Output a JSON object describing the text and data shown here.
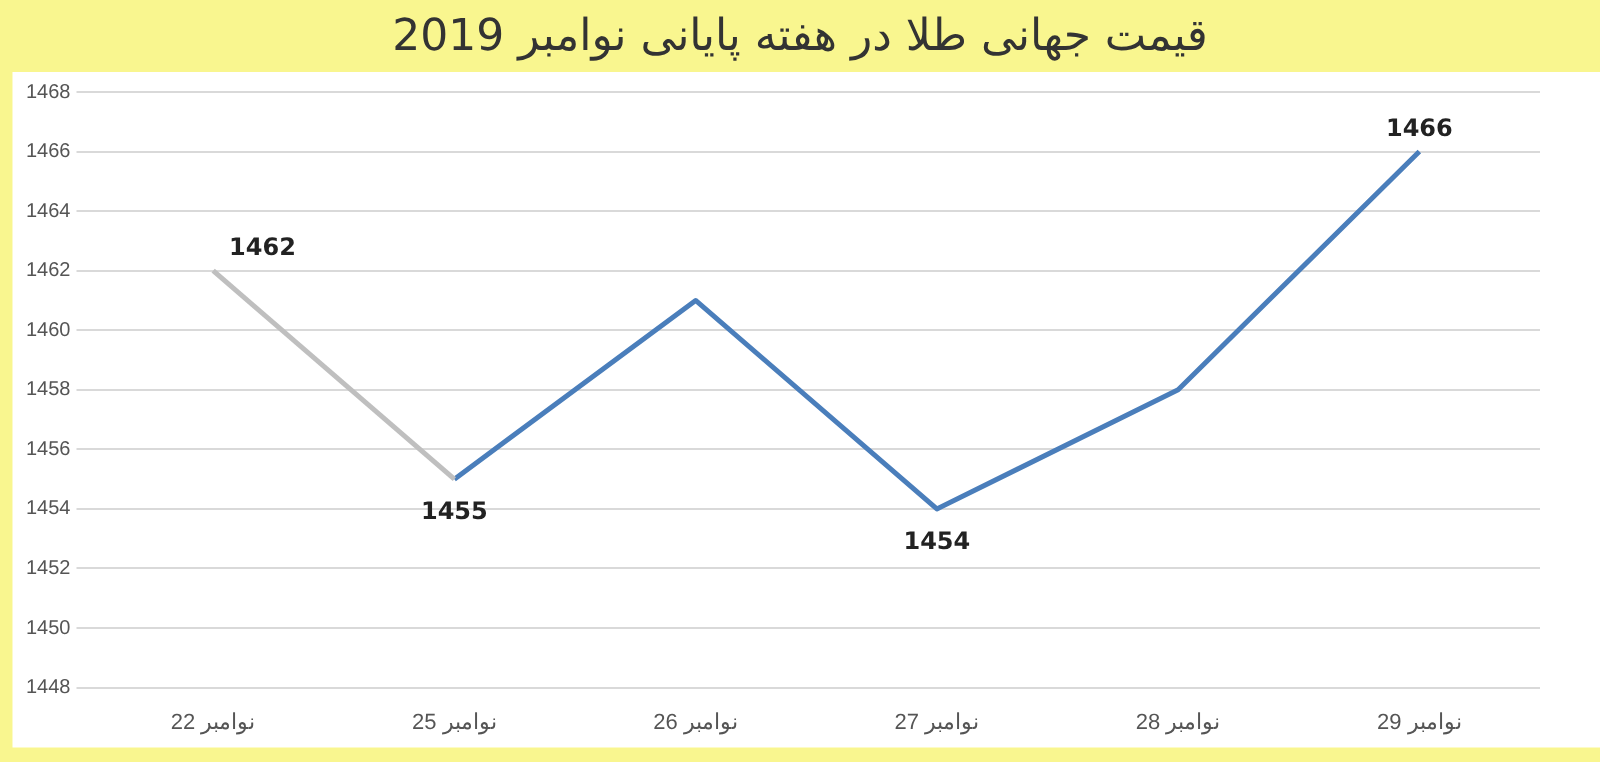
{
  "chart_data": {
    "type": "line",
    "title": "قیمت جهانی طلا در هفته پایانی نوامبر 2019",
    "categories": [
      "22 نوامبر",
      "25 نوامبر",
      "26 نوامبر",
      "27 نوامبر",
      "28 نوامبر",
      "29 نوامبر"
    ],
    "series": [
      {
        "color": "#bfbfbf",
        "values": [
          1462,
          1455,
          null,
          null,
          null,
          null
        ],
        "value_labels": [
          "1462",
          null,
          null,
          null,
          null,
          null
        ]
      },
      {
        "color": "#4a7ebb",
        "values": [
          null,
          1455,
          1461,
          1454,
          1458,
          1466
        ],
        "value_labels": [
          null,
          "1455",
          null,
          "1454",
          null,
          "1466"
        ]
      }
    ],
    "ylim": [
      1448,
      1468
    ],
    "yticks": [
      1448,
      1450,
      1452,
      1454,
      1456,
      1458,
      1460,
      1462,
      1464,
      1466,
      1468
    ],
    "grid": "y",
    "marker": "none",
    "line_style": "solid"
  }
}
